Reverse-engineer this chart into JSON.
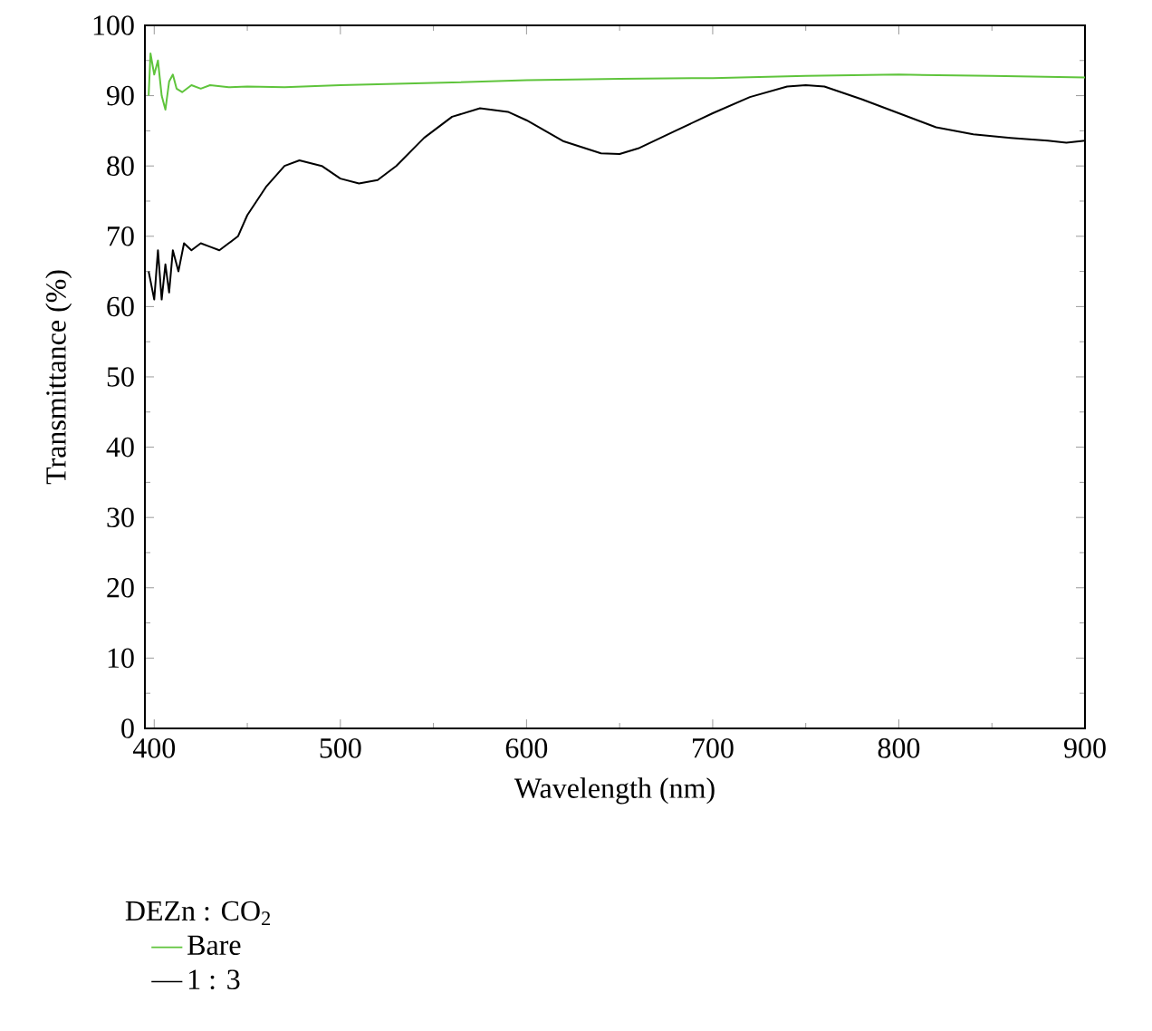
{
  "chart_data": {
    "type": "line",
    "xlabel": "Wavelength (nm)",
    "ylabel": "Transmittance (%)",
    "legend_title": "DEZn : CO$_{2}$",
    "legend": "bottom",
    "xlim": [
      395,
      900
    ],
    "ylim": [
      0,
      100
    ],
    "xticks": [
      400,
      500,
      600,
      700,
      800,
      900
    ],
    "yticks": [
      0,
      10,
      20,
      30,
      40,
      50,
      60,
      70,
      80,
      90,
      100
    ],
    "series": [
      {
        "name": "Bare",
        "color": "#5fc43c",
        "x": [
          397,
          398,
          400,
          402,
          404,
          406,
          408,
          410,
          412,
          415,
          420,
          425,
          430,
          440,
          450,
          470,
          500,
          550,
          600,
          650,
          700,
          750,
          800,
          850,
          900
        ],
        "values": [
          90,
          96,
          93,
          95,
          90,
          88,
          92,
          93,
          91,
          90.5,
          91.5,
          91,
          91.5,
          91.2,
          91.3,
          91.2,
          91.5,
          91.8,
          92.2,
          92.4,
          92.5,
          92.8,
          93,
          92.8,
          92.6
        ]
      },
      {
        "name": "1 : 3",
        "color": "#000000",
        "x": [
          397,
          400,
          402,
          404,
          406,
          408,
          410,
          413,
          416,
          420,
          425,
          430,
          435,
          440,
          445,
          450,
          460,
          470,
          478,
          490,
          500,
          510,
          520,
          530,
          545,
          560,
          575,
          590,
          600,
          620,
          640,
          650,
          660,
          680,
          700,
          720,
          740,
          750,
          760,
          780,
          800,
          820,
          840,
          860,
          880,
          890,
          900
        ],
        "values": [
          65,
          61,
          68,
          61,
          66,
          62,
          68,
          65,
          69,
          68,
          69,
          68.5,
          68,
          69,
          70,
          73,
          77,
          80,
          80.8,
          80,
          78.2,
          77.5,
          78,
          80,
          84,
          87,
          88.2,
          87.7,
          86.5,
          83.5,
          81.8,
          81.7,
          82.5,
          85,
          87.5,
          89.8,
          91.3,
          91.5,
          91.3,
          89.5,
          87.5,
          85.5,
          84.5,
          84,
          83.6,
          83.3,
          83.6
        ]
      }
    ]
  }
}
